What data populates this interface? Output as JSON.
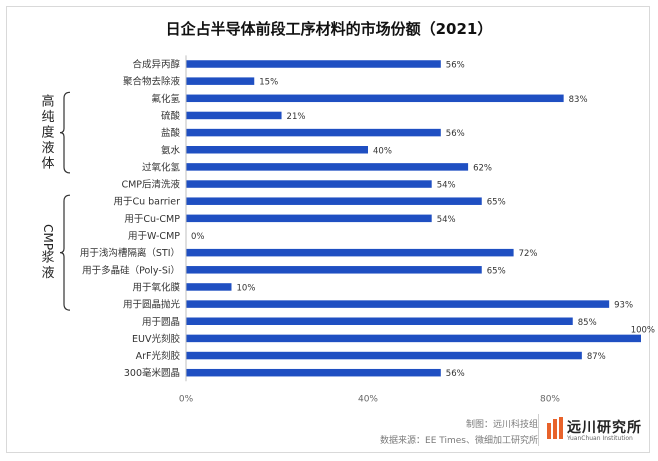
{
  "chart_data": {
    "type": "bar",
    "orientation": "horizontal",
    "title": "日企占半导体前段工序材料的市场份额（2021）",
    "categories": [
      "合成异丙醇",
      "聚合物去除液",
      "氟化氢",
      "硫酸",
      "盐酸",
      "氨水",
      "过氧化氢",
      "CMP后清洗液",
      "用于Cu barrier",
      "用于Cu-CMP",
      "用于W-CMP",
      "用于浅沟槽隔离（STI）",
      "用于多晶硅（Poly-Si）",
      "用于氧化膜",
      "用于圆晶抛光",
      "用于圆晶",
      "EUV光刻胶",
      "ArF光刻胶",
      "300毫米圆晶"
    ],
    "values": [
      56,
      15,
      83,
      21,
      56,
      40,
      62,
      54,
      65,
      54,
      0,
      72,
      65,
      10,
      93,
      85,
      100,
      87,
      56
    ],
    "value_labels": [
      "56%",
      "15%",
      "83%",
      "21%",
      "56%",
      "40%",
      "62%",
      "54%",
      "65%",
      "54%",
      "0%",
      "72%",
      "65%",
      "10%",
      "93%",
      "85%",
      "100%",
      "87%",
      "56%"
    ],
    "xlim": [
      0,
      100
    ],
    "x_ticks": [
      0,
      40,
      80
    ],
    "x_tick_labels": [
      "0%",
      "40%",
      "80%"
    ],
    "bar_color": "#1f4fc2",
    "grid": false,
    "groups": [
      {
        "label": "高纯度液体",
        "from": 2,
        "to": 6
      },
      {
        "label": "CMP浆液",
        "from": 8,
        "to": 14
      }
    ]
  },
  "footer": {
    "credit": "制图：远川科技组",
    "source": "数据来源：EE Times、微细加工研究所",
    "brand_cn": "远川研究所",
    "brand_en": "YuanChuan Institution",
    "brand_color": "#e8622a"
  }
}
